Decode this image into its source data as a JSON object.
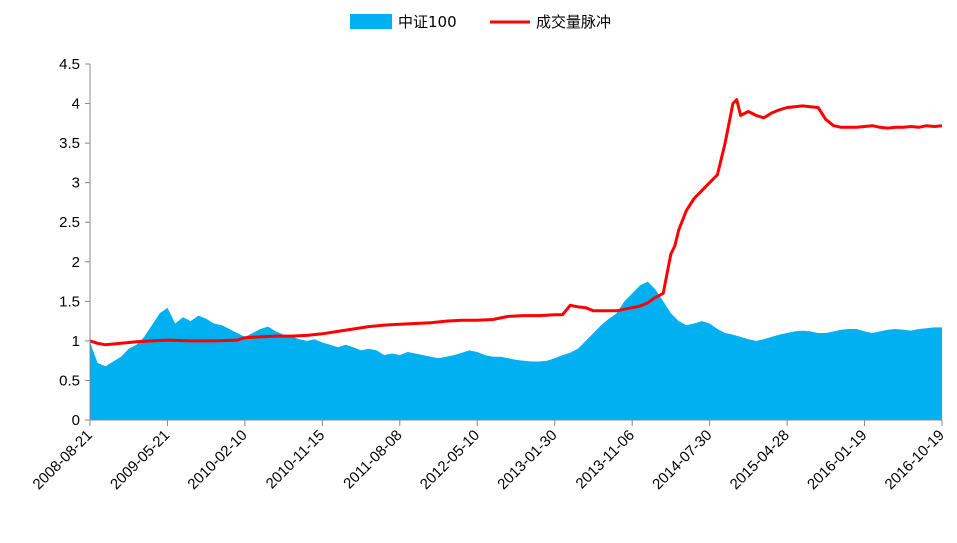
{
  "chart_data": {
    "type": "line",
    "title": "",
    "xlabel": "",
    "ylabel": "",
    "ylim": [
      0,
      4.5
    ],
    "yticks": [
      "0",
      "0.5",
      "1",
      "1.5",
      "2",
      "2.5",
      "3",
      "3.5",
      "4",
      "4.5"
    ],
    "x_tick_labels": [
      "2008-08-21",
      "2009-05-21",
      "2010-02-10",
      "2010-11-15",
      "2011-08-08",
      "2012-05-10",
      "2013-01-30",
      "2013-11-06",
      "2014-07-30",
      "2015-04-28",
      "2016-01-19",
      "2016-10-19"
    ],
    "grid": false,
    "legend_position": "top-center",
    "series": [
      {
        "name": "中证100",
        "kind": "area",
        "color": "#00b0f0",
        "points": [
          [
            0,
            1.0
          ],
          [
            0.03,
            0.9
          ],
          [
            0.1,
            0.72
          ],
          [
            0.2,
            0.68
          ],
          [
            0.3,
            0.74
          ],
          [
            0.4,
            0.8
          ],
          [
            0.5,
            0.9
          ],
          [
            0.6,
            0.95
          ],
          [
            0.7,
            1.05
          ],
          [
            0.8,
            1.2
          ],
          [
            0.9,
            1.35
          ],
          [
            1.0,
            1.42
          ],
          [
            1.1,
            1.22
          ],
          [
            1.2,
            1.3
          ],
          [
            1.3,
            1.25
          ],
          [
            1.4,
            1.32
          ],
          [
            1.5,
            1.28
          ],
          [
            1.6,
            1.22
          ],
          [
            1.7,
            1.2
          ],
          [
            1.8,
            1.15
          ],
          [
            1.9,
            1.1
          ],
          [
            2.0,
            1.05
          ],
          [
            2.1,
            1.1
          ],
          [
            2.2,
            1.15
          ],
          [
            2.3,
            1.18
          ],
          [
            2.4,
            1.12
          ],
          [
            2.5,
            1.08
          ],
          [
            2.6,
            1.06
          ],
          [
            2.7,
            1.02
          ],
          [
            2.8,
            1.0
          ],
          [
            2.9,
            1.02
          ],
          [
            3.0,
            0.98
          ],
          [
            3.1,
            0.95
          ],
          [
            3.2,
            0.92
          ],
          [
            3.3,
            0.95
          ],
          [
            3.4,
            0.92
          ],
          [
            3.5,
            0.88
          ],
          [
            3.6,
            0.9
          ],
          [
            3.7,
            0.88
          ],
          [
            3.8,
            0.82
          ],
          [
            3.9,
            0.84
          ],
          [
            4.0,
            0.82
          ],
          [
            4.1,
            0.86
          ],
          [
            4.2,
            0.84
          ],
          [
            4.3,
            0.82
          ],
          [
            4.4,
            0.8
          ],
          [
            4.5,
            0.78
          ],
          [
            4.6,
            0.8
          ],
          [
            4.7,
            0.82
          ],
          [
            4.8,
            0.85
          ],
          [
            4.9,
            0.88
          ],
          [
            5.0,
            0.86
          ],
          [
            5.1,
            0.82
          ],
          [
            5.2,
            0.8
          ],
          [
            5.3,
            0.8
          ],
          [
            5.4,
            0.78
          ],
          [
            5.5,
            0.76
          ],
          [
            5.6,
            0.75
          ],
          [
            5.7,
            0.74
          ],
          [
            5.8,
            0.74
          ],
          [
            5.9,
            0.75
          ],
          [
            6.0,
            0.78
          ],
          [
            6.1,
            0.82
          ],
          [
            6.2,
            0.85
          ],
          [
            6.3,
            0.9
          ],
          [
            6.4,
            1.0
          ],
          [
            6.5,
            1.1
          ],
          [
            6.6,
            1.2
          ],
          [
            6.7,
            1.28
          ],
          [
            6.8,
            1.35
          ],
          [
            6.9,
            1.5
          ],
          [
            7.0,
            1.6
          ],
          [
            7.1,
            1.7
          ],
          [
            7.2,
            1.75
          ],
          [
            7.3,
            1.65
          ],
          [
            7.4,
            1.5
          ],
          [
            7.5,
            1.35
          ],
          [
            7.6,
            1.25
          ],
          [
            7.7,
            1.2
          ],
          [
            7.8,
            1.22
          ],
          [
            7.9,
            1.25
          ],
          [
            8.0,
            1.22
          ],
          [
            8.1,
            1.15
          ],
          [
            8.2,
            1.1
          ],
          [
            8.3,
            1.08
          ],
          [
            8.4,
            1.05
          ],
          [
            8.5,
            1.02
          ],
          [
            8.6,
            1.0
          ],
          [
            8.7,
            1.02
          ],
          [
            8.8,
            1.05
          ],
          [
            8.9,
            1.08
          ],
          [
            9.0,
            1.1
          ],
          [
            9.1,
            1.12
          ],
          [
            9.2,
            1.13
          ],
          [
            9.3,
            1.12
          ],
          [
            9.4,
            1.1
          ],
          [
            9.5,
            1.1
          ],
          [
            9.6,
            1.12
          ],
          [
            9.7,
            1.14
          ],
          [
            9.8,
            1.15
          ],
          [
            9.9,
            1.15
          ],
          [
            10.0,
            1.12
          ],
          [
            10.1,
            1.1
          ],
          [
            10.2,
            1.12
          ],
          [
            10.3,
            1.14
          ],
          [
            10.4,
            1.15
          ],
          [
            10.5,
            1.14
          ],
          [
            10.6,
            1.13
          ],
          [
            10.7,
            1.15
          ],
          [
            10.8,
            1.16
          ],
          [
            10.9,
            1.17
          ],
          [
            11.0,
            1.17
          ]
        ]
      },
      {
        "name": "成交量脉冲",
        "kind": "line",
        "color": "#ff0000",
        "points": [
          [
            0,
            1.0
          ],
          [
            0.1,
            0.97
          ],
          [
            0.2,
            0.95
          ],
          [
            0.4,
            0.97
          ],
          [
            0.6,
            0.99
          ],
          [
            0.8,
            1.0
          ],
          [
            1.0,
            1.01
          ],
          [
            1.3,
            1.0
          ],
          [
            1.6,
            1.0
          ],
          [
            1.9,
            1.01
          ],
          [
            2.0,
            1.04
          ],
          [
            2.2,
            1.05
          ],
          [
            2.4,
            1.06
          ],
          [
            2.6,
            1.06
          ],
          [
            2.8,
            1.07
          ],
          [
            3.0,
            1.09
          ],
          [
            3.2,
            1.12
          ],
          [
            3.4,
            1.15
          ],
          [
            3.6,
            1.18
          ],
          [
            3.8,
            1.2
          ],
          [
            4.0,
            1.21
          ],
          [
            4.2,
            1.22
          ],
          [
            4.4,
            1.23
          ],
          [
            4.6,
            1.25
          ],
          [
            4.8,
            1.26
          ],
          [
            5.0,
            1.26
          ],
          [
            5.2,
            1.27
          ],
          [
            5.4,
            1.31
          ],
          [
            5.6,
            1.32
          ],
          [
            5.8,
            1.32
          ],
          [
            6.0,
            1.33
          ],
          [
            6.1,
            1.33
          ],
          [
            6.2,
            1.45
          ],
          [
            6.3,
            1.43
          ],
          [
            6.4,
            1.42
          ],
          [
            6.5,
            1.38
          ],
          [
            6.7,
            1.38
          ],
          [
            6.8,
            1.38
          ],
          [
            6.9,
            1.4
          ],
          [
            7.0,
            1.42
          ],
          [
            7.1,
            1.44
          ],
          [
            7.2,
            1.48
          ],
          [
            7.3,
            1.55
          ],
          [
            7.4,
            1.6
          ],
          [
            7.5,
            2.1
          ],
          [
            7.55,
            2.2
          ],
          [
            7.6,
            2.4
          ],
          [
            7.7,
            2.65
          ],
          [
            7.8,
            2.8
          ],
          [
            7.9,
            2.9
          ],
          [
            8.0,
            3.0
          ],
          [
            8.1,
            3.1
          ],
          [
            8.2,
            3.5
          ],
          [
            8.3,
            4.0
          ],
          [
            8.35,
            4.05
          ],
          [
            8.4,
            3.85
          ],
          [
            8.5,
            3.9
          ],
          [
            8.6,
            3.85
          ],
          [
            8.7,
            3.82
          ],
          [
            8.8,
            3.88
          ],
          [
            8.9,
            3.92
          ],
          [
            9.0,
            3.95
          ],
          [
            9.1,
            3.96
          ],
          [
            9.2,
            3.97
          ],
          [
            9.3,
            3.96
          ],
          [
            9.4,
            3.95
          ],
          [
            9.5,
            3.8
          ],
          [
            9.6,
            3.72
          ],
          [
            9.7,
            3.7
          ],
          [
            9.8,
            3.7
          ],
          [
            9.9,
            3.7
          ],
          [
            10.0,
            3.71
          ],
          [
            10.1,
            3.72
          ],
          [
            10.2,
            3.7
          ],
          [
            10.3,
            3.69
          ],
          [
            10.4,
            3.7
          ],
          [
            10.5,
            3.7
          ],
          [
            10.6,
            3.71
          ],
          [
            10.7,
            3.7
          ],
          [
            10.8,
            3.72
          ],
          [
            10.9,
            3.71
          ],
          [
            11.0,
            3.72
          ]
        ]
      }
    ]
  }
}
